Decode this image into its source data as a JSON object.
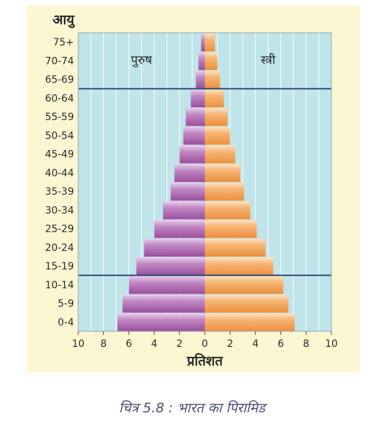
{
  "chart_data": {
    "type": "bar",
    "orientation": "horizontal-population-pyramid",
    "y_axis_title": "आयु",
    "x_axis_title": "प्रतिशत",
    "left_label": "पुरुष",
    "right_label": "स्त्री",
    "categories": [
      "0-4",
      "5-9",
      "10-14",
      "15-19",
      "20-24",
      "25-29",
      "30-34",
      "35-39",
      "40-44",
      "45-49",
      "50-54",
      "55-59",
      "60-64",
      "65-69",
      "70-74",
      "75+"
    ],
    "series": [
      {
        "name": "पुरुष",
        "side": "left",
        "values": [
          6.9,
          6.5,
          6.0,
          5.4,
          4.8,
          4.0,
          3.3,
          2.7,
          2.4,
          2.0,
          1.7,
          1.5,
          1.1,
          0.7,
          0.5,
          0.3
        ]
      },
      {
        "name": "स्त्री",
        "side": "right",
        "values": [
          7.1,
          6.6,
          6.2,
          5.4,
          4.8,
          4.1,
          3.6,
          3.1,
          2.8,
          2.4,
          2.0,
          1.8,
          1.5,
          1.2,
          1.0,
          0.8
        ]
      }
    ],
    "x_ticks": [
      "10",
      "8",
      "6",
      "4",
      "2",
      "0",
      "2",
      "4",
      "6",
      "8",
      "10"
    ],
    "xlim": [
      -10,
      10
    ],
    "reference_lines_after": [
      "10-14",
      "60-64"
    ],
    "colors": {
      "plot_bg": "#bfe4e9",
      "grid": "#ffffff",
      "male_fill": "#a560a5",
      "male_light": "#e3c6e8",
      "female_fill": "#f09a4a",
      "female_light": "#fbd9b0",
      "divider": "#2f4a78",
      "frame_bg": "#fdf6d3"
    }
  },
  "caption": "चित्र 5.8 : भारत का पिरामिड"
}
